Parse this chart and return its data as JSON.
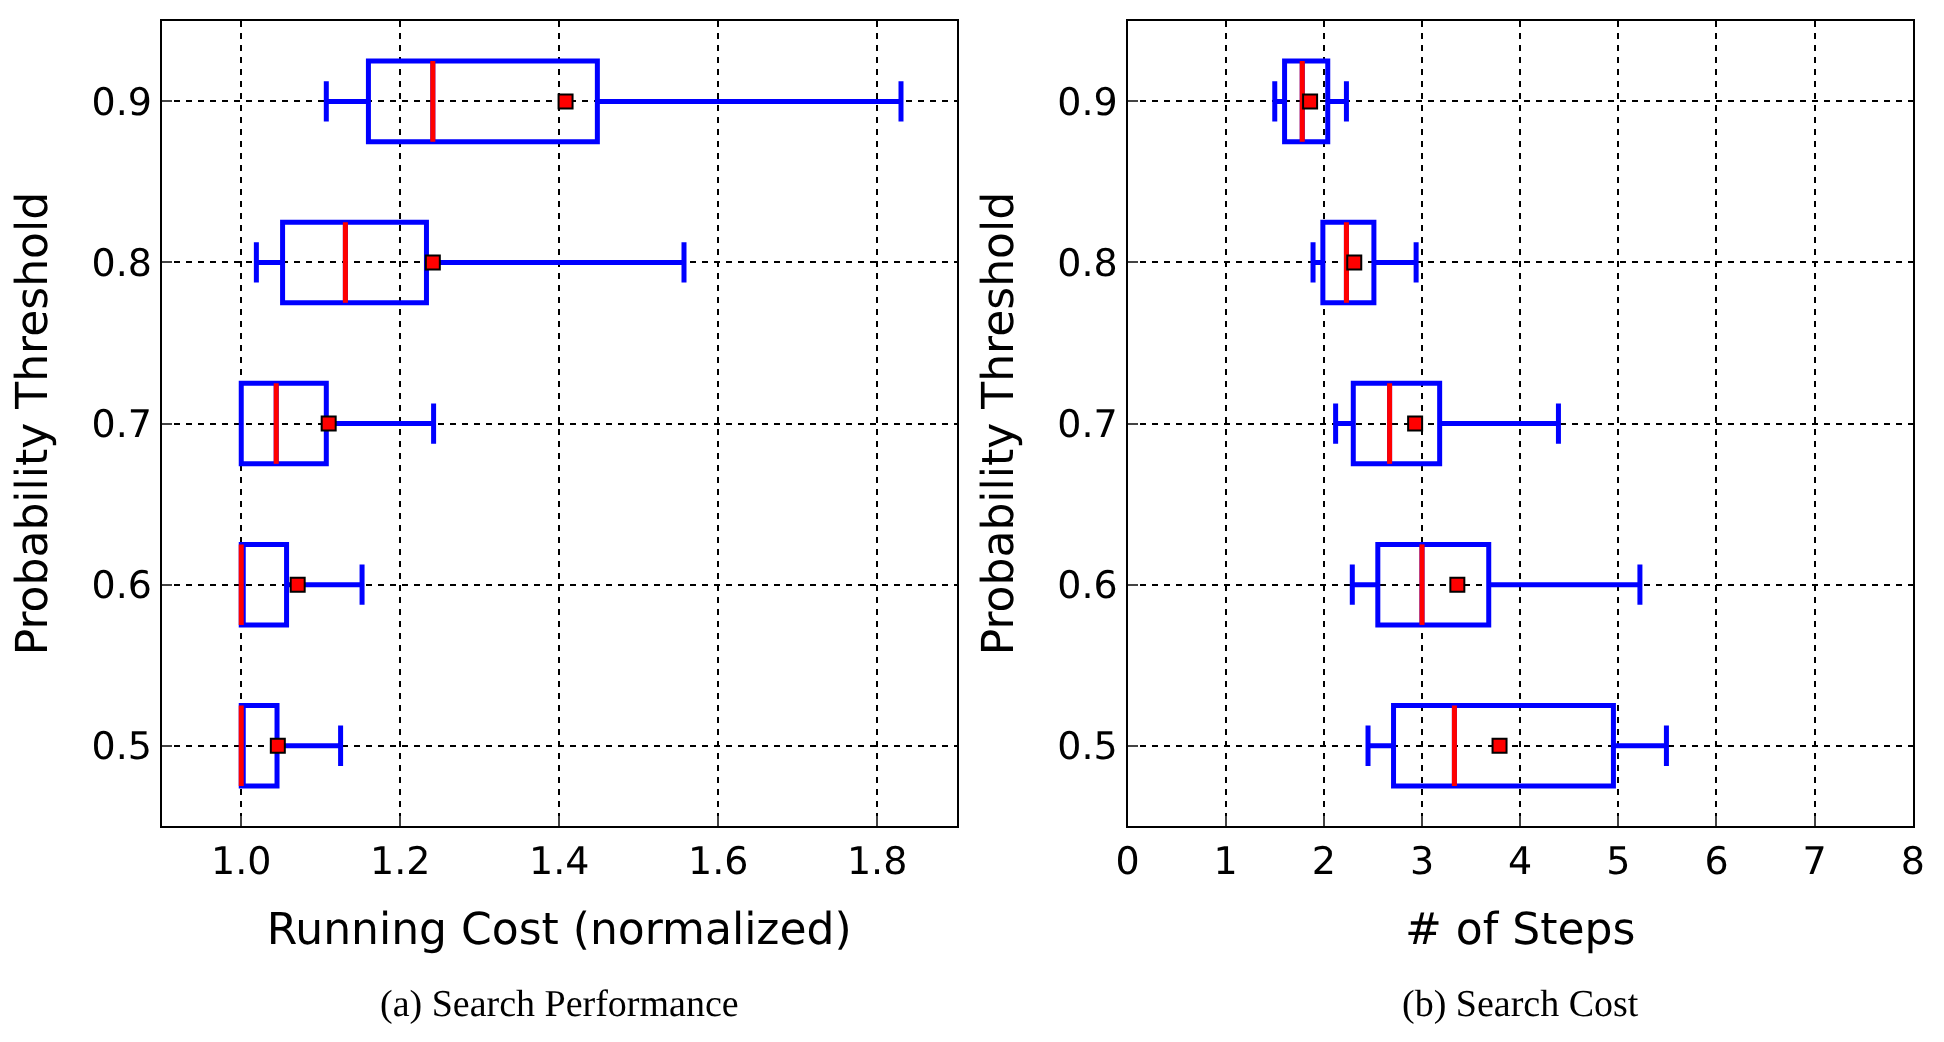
{
  "chart_data": [
    {
      "type": "box",
      "title": "(a) Search Performance",
      "orientation": "horizontal",
      "xlabel": "Running Cost (normalized)",
      "ylabel": "Probability Threshold",
      "categories": [
        "0.9",
        "0.8",
        "0.7",
        "0.6",
        "0.5"
      ],
      "xlim": [
        0.9,
        1.9
      ],
      "xticks": [
        {
          "value": 1,
          "label": "1.0"
        },
        1.2,
        1.4,
        1.6,
        1.8
      ],
      "grid": true,
      "series": [
        {
          "color": "#0000ff",
          "boxes": [
            {
              "low": 1.107,
              "q1": 1.16,
              "median": 1.241,
              "q3": 1.448,
              "high": 1.83,
              "mean": 1.408
            },
            {
              "low": 1.019,
              "q1": 1.052,
              "median": 1.131,
              "q3": 1.233,
              "high": 1.557,
              "mean": 1.241
            },
            {
              "low": 1.0,
              "q1": 1.0,
              "median": 1.044,
              "q3": 1.107,
              "high": 1.242,
              "mean": 1.11
            },
            {
              "low": 1.0,
              "q1": 1.0,
              "median": 1.0,
              "q3": 1.057,
              "high": 1.152,
              "mean": 1.071
            },
            {
              "low": 1.0,
              "q1": 1.0,
              "median": 1.0,
              "q3": 1.045,
              "high": 1.125,
              "mean": 1.046
            }
          ]
        }
      ]
    },
    {
      "type": "box",
      "title": "(b) Search Cost",
      "orientation": "horizontal",
      "xlabel": "# of Steps",
      "ylabel": "Probability Threshold",
      "categories": [
        "0.9",
        "0.8",
        "0.7",
        "0.6",
        "0.5"
      ],
      "xlim": [
        0,
        8
      ],
      "xticks": [
        0,
        1,
        2,
        3,
        4,
        5,
        6,
        7,
        8
      ],
      "grid": true,
      "series": [
        {
          "color": "#0000ff",
          "boxes": [
            {
              "low": 1.5,
              "q1": 1.6,
              "median": 1.78,
              "q3": 2.04,
              "high": 2.23,
              "mean": 1.86
            },
            {
              "low": 1.89,
              "q1": 1.99,
              "median": 2.23,
              "q3": 2.51,
              "high": 2.94,
              "mean": 2.31
            },
            {
              "low": 2.12,
              "q1": 2.3,
              "median": 2.67,
              "q3": 3.18,
              "high": 4.39,
              "mean": 2.93
            },
            {
              "low": 2.29,
              "q1": 2.55,
              "median": 3.0,
              "q3": 3.68,
              "high": 5.22,
              "mean": 3.36
            },
            {
              "low": 2.45,
              "q1": 2.71,
              "median": 3.33,
              "q3": 4.95,
              "high": 5.49,
              "mean": 3.79
            }
          ]
        }
      ]
    }
  ]
}
